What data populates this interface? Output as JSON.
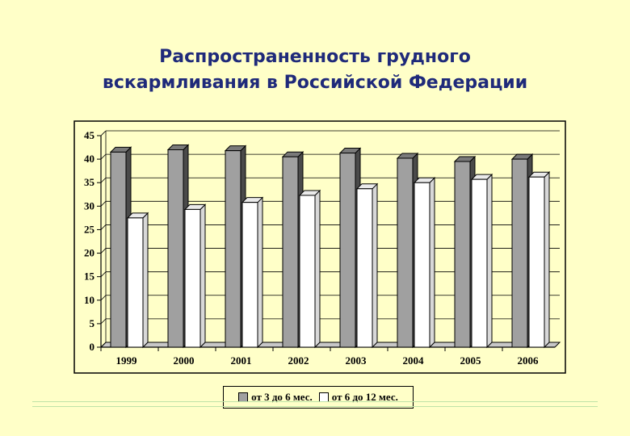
{
  "title": {
    "line1": "Распространенность грудного",
    "line2": "вскармливания в Российской Федерации"
  },
  "chart_data": {
    "type": "bar",
    "categories": [
      "1999",
      "2000",
      "2001",
      "2002",
      "2003",
      "2004",
      "2005",
      "2006"
    ],
    "series": [
      {
        "name": "от 3 до 6 мес.",
        "values": [
          41.5,
          42,
          41.8,
          40.5,
          41.3,
          40.2,
          39.5,
          40
        ],
        "color": "#A0A0A0"
      },
      {
        "name": "от 6 до 12 мес.",
        "values": [
          27.5,
          29.3,
          30.8,
          32.3,
          33.7,
          35,
          35.7,
          36.2
        ],
        "color": "#FFFFFF"
      }
    ],
    "yticks": [
      0,
      5,
      10,
      15,
      20,
      25,
      30,
      35,
      40,
      45
    ],
    "ylim": [
      0,
      45
    ],
    "grid": true,
    "legend": "bottom",
    "style": "3d-clustered-bar"
  }
}
